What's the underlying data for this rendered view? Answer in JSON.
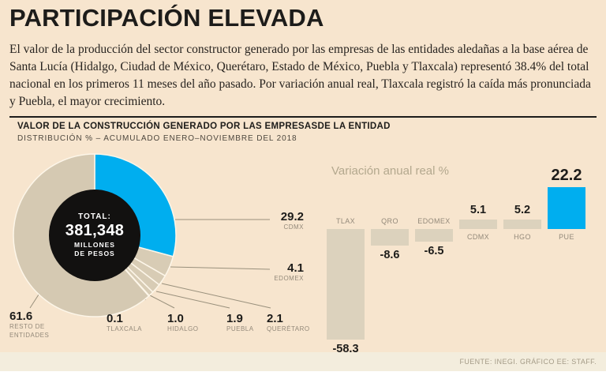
{
  "header": {
    "title": "PARTICIPACIÓN ELEVADA",
    "intro": "El valor de la producción del sector constructor generado por las empresas de las entidades aledañas a la base aérea de Santa Lucía (Hidalgo, Ciudad de México, Querétaro, Estado de México, Puebla y Tlaxcala) representó 38.4% del total nacional en los primeros 11 meses del año pasado. Por variación anual real, Tlaxcala registró la caída más pronunciada y Puebla, el mayor crecimiento."
  },
  "section": {
    "title": "VALOR DE LA CONSTRUCCIÓN GENERADO POR LAS EMPRESASDE LA ENTIDAD",
    "subtitle": "DISTRIBUCIÓN % – ACUMULADO ENERO–NOVIEMBRE DEL 2018"
  },
  "footer": {
    "source": "FUENTE: INEGI. GRÁFICO EE: STAFF."
  },
  "colors": {
    "background": "#f7e5ce",
    "accent_blue": "#00aeef",
    "pie_beige": "#d8ccb5",
    "bar_beige": "#dcd2bd",
    "black": "#121110"
  },
  "chart_data": [
    {
      "type": "pie",
      "title": "VALOR DE LA CONSTRUCCIÓN GENERADO POR LAS EMPRESASDE LA ENTIDAD",
      "subtitle": "DISTRIBUCIÓN % – ACUMULADO ENERO–NOVIEMBRE DEL 2018",
      "center": {
        "line1": "TOTAL:",
        "line2": "381,348",
        "line3": "MILLONES",
        "line4": "DE PESOS"
      },
      "slices": [
        {
          "label": "CDMX",
          "value": "29.2",
          "color": "#00aeef"
        },
        {
          "label": "EDOMEX",
          "value": "4.1",
          "color": "#d8ccb5"
        },
        {
          "label": "QUERÉTARO",
          "value": "2.1",
          "color": "#d8ccb5"
        },
        {
          "label": "PUEBLA",
          "value": "1.9",
          "color": "#d8ccb5"
        },
        {
          "label": "HIDALGO",
          "value": "1.0",
          "color": "#d8ccb5"
        },
        {
          "label": "TLAXCALA",
          "value": "0.1",
          "color": "#d8ccb5"
        },
        {
          "label": "RESTO DE ENTIDADES",
          "value": "61.6",
          "color": "#d5c9b2"
        }
      ]
    },
    {
      "type": "bar",
      "title": "Variación anual real %",
      "categories": [
        "TLAX",
        "QRO",
        "EDOMEX",
        "CDMX",
        "HGO",
        "PUE"
      ],
      "values": [
        -58.3,
        -8.6,
        -6.5,
        5.1,
        5.2,
        22.2
      ],
      "value_labels": [
        "-58.3",
        "-8.6",
        "-6.5",
        "5.1",
        "5.2",
        "22.2"
      ],
      "highlight_category": "PUE",
      "highlight_color": "#00aeef",
      "bar_color": "#dcd2bd",
      "ylim": [
        -60,
        25
      ],
      "legend": "none",
      "grid": false
    }
  ]
}
